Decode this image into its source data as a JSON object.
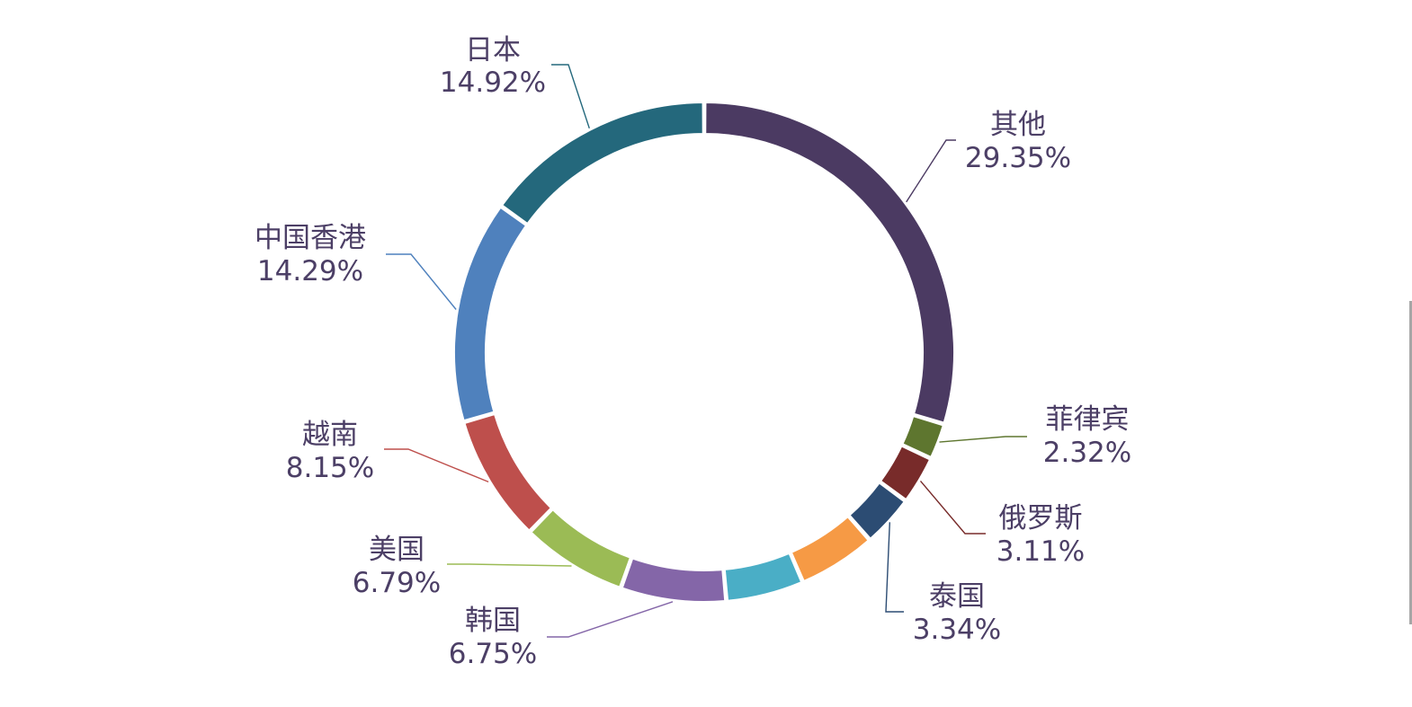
{
  "chart_data": {
    "type": "pie",
    "variant": "donut",
    "title": "",
    "slices": [
      {
        "key": "other",
        "label": "其他",
        "value": 29.35,
        "value_label": "29.35%",
        "color": "#4b3a62"
      },
      {
        "key": "philippines",
        "label": "菲律宾",
        "value": 2.32,
        "value_label": "2.32%",
        "color": "#5e762f"
      },
      {
        "key": "russia",
        "label": "俄罗斯",
        "value": 3.11,
        "value_label": "3.11%",
        "color": "#782b2a"
      },
      {
        "key": "thailand",
        "label": "泰国",
        "value": 3.34,
        "value_label": "3.34%",
        "color": "#2c4c73"
      },
      {
        "key": "unlabeled_orange",
        "label": "",
        "value": 5.0,
        "value_label": "",
        "color": "#f69a45"
      },
      {
        "key": "unlabeled_cyan",
        "label": "",
        "value": 4.98,
        "value_label": "",
        "color": "#4aaec6"
      },
      {
        "key": "korea",
        "label": "韩国",
        "value": 6.75,
        "value_label": "6.75%",
        "color": "#8466a8"
      },
      {
        "key": "usa",
        "label": "美国",
        "value": 6.79,
        "value_label": "6.79%",
        "color": "#9bbb55"
      },
      {
        "key": "vietnam",
        "label": "越南",
        "value": 8.15,
        "value_label": "8.15%",
        "color": "#be4f4c"
      },
      {
        "key": "hongkong",
        "label": "中国香港",
        "value": 14.29,
        "value_label": "14.29%",
        "color": "#4f81bd"
      },
      {
        "key": "japan",
        "label": "日本",
        "value": 14.92,
        "value_label": "14.92%",
        "color": "#24687c"
      }
    ]
  }
}
